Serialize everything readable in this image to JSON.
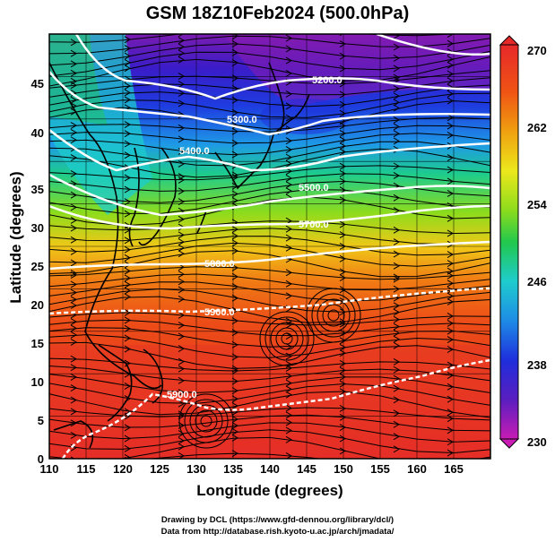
{
  "title": "GSM 18Z10Feb2024 (500.0hPa)",
  "axes": {
    "xlabel": "Longitude (degrees)",
    "ylabel": "Latitude  (degrees)",
    "xlim": [
      110,
      170
    ],
    "ylim": [
      0,
      50
    ],
    "xticks": [
      "110",
      "115",
      "120",
      "125",
      "130",
      "135",
      "140",
      "145",
      "150",
      "155",
      "160",
      "165"
    ],
    "yticks": [
      "0",
      "5",
      "10",
      "15",
      "20",
      "25",
      "30",
      "35",
      "40",
      "45"
    ]
  },
  "colorbar": {
    "labels": [
      "270",
      "262",
      "254",
      "246",
      "238",
      "230"
    ],
    "min": 230,
    "max": 270,
    "colors": [
      "#c81cb4",
      "#5a1ec0",
      "#1e2edc",
      "#1e8ce6",
      "#1ecccc",
      "#22c84c",
      "#8cdc1c",
      "#ece81c",
      "#f0a010",
      "#f05414",
      "#e6282a"
    ]
  },
  "contours": {
    "labels": [
      "5200.0",
      "5300.0",
      "5400.0",
      "5500.0",
      "5700.0",
      "5800.0",
      "5900.0",
      "5900.0"
    ]
  },
  "credits": {
    "line1": "Drawing by DCL (https://www.gfd-dennou.org/library/dcl/)",
    "line2": "Data from http://database.rish.kyoto-u.ac.jp/arch/jmadata/"
  }
}
